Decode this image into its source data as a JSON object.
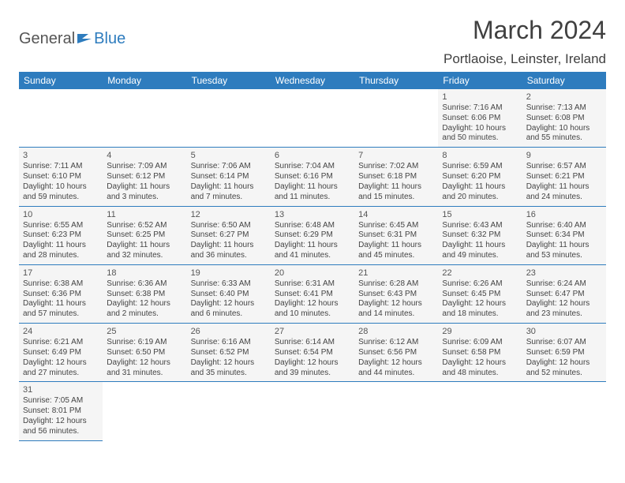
{
  "brand": {
    "general": "General",
    "blue": "Blue"
  },
  "month_title": "March 2024",
  "location": "Portlaoise, Leinster, Ireland",
  "colors": {
    "header_bg": "#2e7cbe",
    "header_text": "#ffffff",
    "cell_bg": "#f5f5f5",
    "border": "#2e7cbe",
    "text": "#444444"
  },
  "day_headers": [
    "Sunday",
    "Monday",
    "Tuesday",
    "Wednesday",
    "Thursday",
    "Friday",
    "Saturday"
  ],
  "leading_blanks": 5,
  "days": [
    {
      "n": "1",
      "sr": "Sunrise: 7:16 AM",
      "ss": "Sunset: 6:06 PM",
      "d1": "Daylight: 10 hours",
      "d2": "and 50 minutes."
    },
    {
      "n": "2",
      "sr": "Sunrise: 7:13 AM",
      "ss": "Sunset: 6:08 PM",
      "d1": "Daylight: 10 hours",
      "d2": "and 55 minutes."
    },
    {
      "n": "3",
      "sr": "Sunrise: 7:11 AM",
      "ss": "Sunset: 6:10 PM",
      "d1": "Daylight: 10 hours",
      "d2": "and 59 minutes."
    },
    {
      "n": "4",
      "sr": "Sunrise: 7:09 AM",
      "ss": "Sunset: 6:12 PM",
      "d1": "Daylight: 11 hours",
      "d2": "and 3 minutes."
    },
    {
      "n": "5",
      "sr": "Sunrise: 7:06 AM",
      "ss": "Sunset: 6:14 PM",
      "d1": "Daylight: 11 hours",
      "d2": "and 7 minutes."
    },
    {
      "n": "6",
      "sr": "Sunrise: 7:04 AM",
      "ss": "Sunset: 6:16 PM",
      "d1": "Daylight: 11 hours",
      "d2": "and 11 minutes."
    },
    {
      "n": "7",
      "sr": "Sunrise: 7:02 AM",
      "ss": "Sunset: 6:18 PM",
      "d1": "Daylight: 11 hours",
      "d2": "and 15 minutes."
    },
    {
      "n": "8",
      "sr": "Sunrise: 6:59 AM",
      "ss": "Sunset: 6:20 PM",
      "d1": "Daylight: 11 hours",
      "d2": "and 20 minutes."
    },
    {
      "n": "9",
      "sr": "Sunrise: 6:57 AM",
      "ss": "Sunset: 6:21 PM",
      "d1": "Daylight: 11 hours",
      "d2": "and 24 minutes."
    },
    {
      "n": "10",
      "sr": "Sunrise: 6:55 AM",
      "ss": "Sunset: 6:23 PM",
      "d1": "Daylight: 11 hours",
      "d2": "and 28 minutes."
    },
    {
      "n": "11",
      "sr": "Sunrise: 6:52 AM",
      "ss": "Sunset: 6:25 PM",
      "d1": "Daylight: 11 hours",
      "d2": "and 32 minutes."
    },
    {
      "n": "12",
      "sr": "Sunrise: 6:50 AM",
      "ss": "Sunset: 6:27 PM",
      "d1": "Daylight: 11 hours",
      "d2": "and 36 minutes."
    },
    {
      "n": "13",
      "sr": "Sunrise: 6:48 AM",
      "ss": "Sunset: 6:29 PM",
      "d1": "Daylight: 11 hours",
      "d2": "and 41 minutes."
    },
    {
      "n": "14",
      "sr": "Sunrise: 6:45 AM",
      "ss": "Sunset: 6:31 PM",
      "d1": "Daylight: 11 hours",
      "d2": "and 45 minutes."
    },
    {
      "n": "15",
      "sr": "Sunrise: 6:43 AM",
      "ss": "Sunset: 6:32 PM",
      "d1": "Daylight: 11 hours",
      "d2": "and 49 minutes."
    },
    {
      "n": "16",
      "sr": "Sunrise: 6:40 AM",
      "ss": "Sunset: 6:34 PM",
      "d1": "Daylight: 11 hours",
      "d2": "and 53 minutes."
    },
    {
      "n": "17",
      "sr": "Sunrise: 6:38 AM",
      "ss": "Sunset: 6:36 PM",
      "d1": "Daylight: 11 hours",
      "d2": "and 57 minutes."
    },
    {
      "n": "18",
      "sr": "Sunrise: 6:36 AM",
      "ss": "Sunset: 6:38 PM",
      "d1": "Daylight: 12 hours",
      "d2": "and 2 minutes."
    },
    {
      "n": "19",
      "sr": "Sunrise: 6:33 AM",
      "ss": "Sunset: 6:40 PM",
      "d1": "Daylight: 12 hours",
      "d2": "and 6 minutes."
    },
    {
      "n": "20",
      "sr": "Sunrise: 6:31 AM",
      "ss": "Sunset: 6:41 PM",
      "d1": "Daylight: 12 hours",
      "d2": "and 10 minutes."
    },
    {
      "n": "21",
      "sr": "Sunrise: 6:28 AM",
      "ss": "Sunset: 6:43 PM",
      "d1": "Daylight: 12 hours",
      "d2": "and 14 minutes."
    },
    {
      "n": "22",
      "sr": "Sunrise: 6:26 AM",
      "ss": "Sunset: 6:45 PM",
      "d1": "Daylight: 12 hours",
      "d2": "and 18 minutes."
    },
    {
      "n": "23",
      "sr": "Sunrise: 6:24 AM",
      "ss": "Sunset: 6:47 PM",
      "d1": "Daylight: 12 hours",
      "d2": "and 23 minutes."
    },
    {
      "n": "24",
      "sr": "Sunrise: 6:21 AM",
      "ss": "Sunset: 6:49 PM",
      "d1": "Daylight: 12 hours",
      "d2": "and 27 minutes."
    },
    {
      "n": "25",
      "sr": "Sunrise: 6:19 AM",
      "ss": "Sunset: 6:50 PM",
      "d1": "Daylight: 12 hours",
      "d2": "and 31 minutes."
    },
    {
      "n": "26",
      "sr": "Sunrise: 6:16 AM",
      "ss": "Sunset: 6:52 PM",
      "d1": "Daylight: 12 hours",
      "d2": "and 35 minutes."
    },
    {
      "n": "27",
      "sr": "Sunrise: 6:14 AM",
      "ss": "Sunset: 6:54 PM",
      "d1": "Daylight: 12 hours",
      "d2": "and 39 minutes."
    },
    {
      "n": "28",
      "sr": "Sunrise: 6:12 AM",
      "ss": "Sunset: 6:56 PM",
      "d1": "Daylight: 12 hours",
      "d2": "and 44 minutes."
    },
    {
      "n": "29",
      "sr": "Sunrise: 6:09 AM",
      "ss": "Sunset: 6:58 PM",
      "d1": "Daylight: 12 hours",
      "d2": "and 48 minutes."
    },
    {
      "n": "30",
      "sr": "Sunrise: 6:07 AM",
      "ss": "Sunset: 6:59 PM",
      "d1": "Daylight: 12 hours",
      "d2": "and 52 minutes."
    },
    {
      "n": "31",
      "sr": "Sunrise: 7:05 AM",
      "ss": "Sunset: 8:01 PM",
      "d1": "Daylight: 12 hours",
      "d2": "and 56 minutes."
    }
  ]
}
